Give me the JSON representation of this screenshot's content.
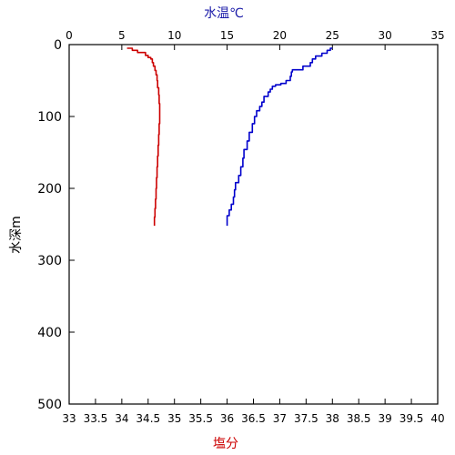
{
  "chart_data": {
    "type": "line",
    "top_axis": {
      "label": "水温℃",
      "label_color": "#1a1aa8",
      "ticks": [
        0,
        5,
        10,
        15,
        20,
        25,
        30,
        35
      ],
      "range": [
        0,
        35
      ]
    },
    "bottom_axis": {
      "label": "塩分",
      "label_color": "#cc0000",
      "ticks": [
        33,
        33.5,
        34,
        34.5,
        35,
        35.5,
        36,
        36.5,
        37,
        37.5,
        38,
        38.5,
        39,
        39.5,
        40
      ],
      "range": [
        33,
        40
      ]
    },
    "y_axis": {
      "label": "水深m",
      "ticks": [
        0,
        100,
        200,
        300,
        400,
        500
      ],
      "range": [
        0,
        500
      ],
      "inverted": true
    },
    "grid": false,
    "series": [
      {
        "color": "#0000cc",
        "axis": "top",
        "points": [
          [
            25.0,
            5
          ],
          [
            24.8,
            8
          ],
          [
            24.5,
            12
          ],
          [
            24.0,
            16
          ],
          [
            23.4,
            20
          ],
          [
            23.1,
            25
          ],
          [
            22.9,
            30
          ],
          [
            22.2,
            35
          ],
          [
            21.2,
            38
          ],
          [
            21.1,
            44
          ],
          [
            21.0,
            50
          ],
          [
            20.6,
            54
          ],
          [
            20.1,
            56
          ],
          [
            19.6,
            58
          ],
          [
            19.3,
            62
          ],
          [
            19.1,
            66
          ],
          [
            18.9,
            72
          ],
          [
            18.5,
            80
          ],
          [
            18.3,
            86
          ],
          [
            18.1,
            92
          ],
          [
            17.8,
            100
          ],
          [
            17.6,
            110
          ],
          [
            17.4,
            122
          ],
          [
            17.1,
            134
          ],
          [
            16.9,
            146
          ],
          [
            16.6,
            158
          ],
          [
            16.5,
            170
          ],
          [
            16.3,
            182
          ],
          [
            16.1,
            192
          ],
          [
            15.8,
            202
          ],
          [
            15.7,
            212
          ],
          [
            15.6,
            222
          ],
          [
            15.4,
            230
          ],
          [
            15.2,
            238
          ],
          [
            15.0,
            244
          ],
          [
            15.0,
            252
          ]
        ]
      },
      {
        "color": "#cc0000",
        "axis": "bottom",
        "points": [
          [
            34.1,
            5
          ],
          [
            34.2,
            8
          ],
          [
            34.3,
            11
          ],
          [
            34.45,
            15
          ],
          [
            34.5,
            18
          ],
          [
            34.55,
            20
          ],
          [
            34.58,
            25
          ],
          [
            34.6,
            30
          ],
          [
            34.63,
            36
          ],
          [
            34.65,
            42
          ],
          [
            34.67,
            50
          ],
          [
            34.68,
            60
          ],
          [
            34.7,
            70
          ],
          [
            34.71,
            82
          ],
          [
            34.72,
            95
          ],
          [
            34.72,
            110
          ],
          [
            34.71,
            125
          ],
          [
            34.7,
            140
          ],
          [
            34.69,
            155
          ],
          [
            34.68,
            170
          ],
          [
            34.67,
            185
          ],
          [
            34.66,
            200
          ],
          [
            34.65,
            215
          ],
          [
            34.64,
            228
          ],
          [
            34.63,
            240
          ],
          [
            34.62,
            252
          ]
        ]
      }
    ]
  }
}
